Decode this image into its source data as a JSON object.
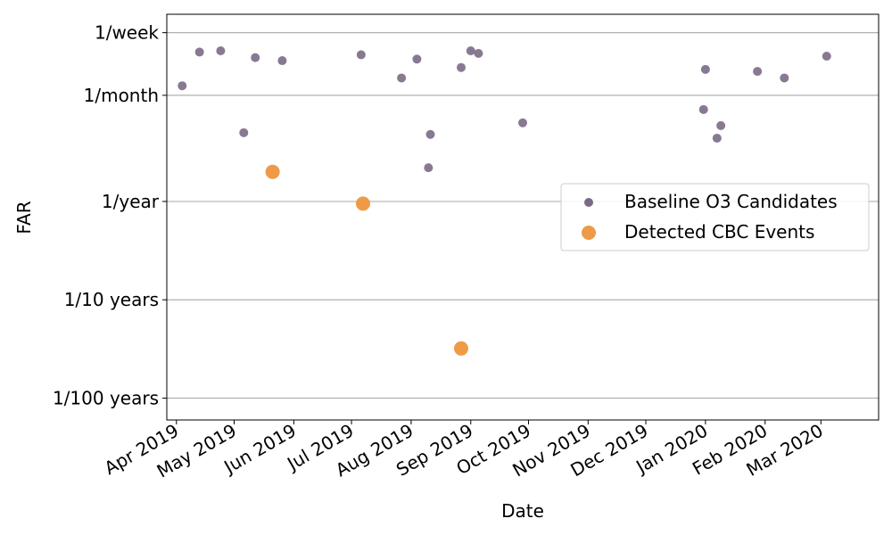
{
  "chart_data": {
    "type": "scatter",
    "title": "",
    "xlabel": "Date",
    "ylabel": "FAR",
    "y_scale": "log",
    "y_unit": "events per year",
    "grid": "horizontal",
    "legend_position": "center-right",
    "x_ticks": [
      "2019-04-01",
      "2019-05-01",
      "2019-06-01",
      "2019-07-01",
      "2019-08-01",
      "2019-09-01",
      "2019-10-01",
      "2019-11-01",
      "2019-12-01",
      "2020-01-01",
      "2020-02-01",
      "2020-03-01"
    ],
    "x_tick_labels": [
      "Apr 2019",
      "May 2019",
      "Jun 2019",
      "Jul 2019",
      "Aug 2019",
      "Sep 2019",
      "Oct 2019",
      "Nov 2019",
      "Dec 2019",
      "Jan 2020",
      "Feb 2020",
      "Mar 2020"
    ],
    "xlim": [
      "2019-03-27",
      "2020-03-31"
    ],
    "y_ticks": [
      52,
      12,
      1,
      0.1,
      0.01
    ],
    "y_tick_labels": [
      "1/week",
      "1/month",
      "1/year",
      "1/10 years",
      "1/100 years"
    ],
    "ylim": [
      0.006,
      80
    ],
    "series": [
      {
        "name": "Baseline O3 Candidates",
        "color": "#7b6a87",
        "points": [
          {
            "x": "2019-04-04",
            "y": 15
          },
          {
            "x": "2019-04-13",
            "y": 33
          },
          {
            "x": "2019-04-24",
            "y": 34
          },
          {
            "x": "2019-05-06",
            "y": 5
          },
          {
            "x": "2019-05-12",
            "y": 29
          },
          {
            "x": "2019-05-26",
            "y": 27
          },
          {
            "x": "2019-07-06",
            "y": 31
          },
          {
            "x": "2019-07-27",
            "y": 18
          },
          {
            "x": "2019-08-04",
            "y": 28
          },
          {
            "x": "2019-08-10",
            "y": 2.2
          },
          {
            "x": "2019-08-11",
            "y": 4.8
          },
          {
            "x": "2019-08-27",
            "y": 23
          },
          {
            "x": "2019-09-01",
            "y": 34
          },
          {
            "x": "2019-09-05",
            "y": 32
          },
          {
            "x": "2019-09-28",
            "y": 6.3
          },
          {
            "x": "2019-12-31",
            "y": 8.6
          },
          {
            "x": "2020-01-01",
            "y": 22
          },
          {
            "x": "2020-01-07",
            "y": 4.4
          },
          {
            "x": "2020-01-09",
            "y": 5.9
          },
          {
            "x": "2020-01-28",
            "y": 21
          },
          {
            "x": "2020-02-11",
            "y": 18
          },
          {
            "x": "2020-03-04",
            "y": 30
          }
        ]
      },
      {
        "name": "Detected CBC Events",
        "color": "#ef9a47",
        "points": [
          {
            "x": "2019-05-21",
            "y": 2.0
          },
          {
            "x": "2019-07-07",
            "y": 0.95
          },
          {
            "x": "2019-08-27",
            "y": 0.032
          }
        ]
      }
    ]
  }
}
